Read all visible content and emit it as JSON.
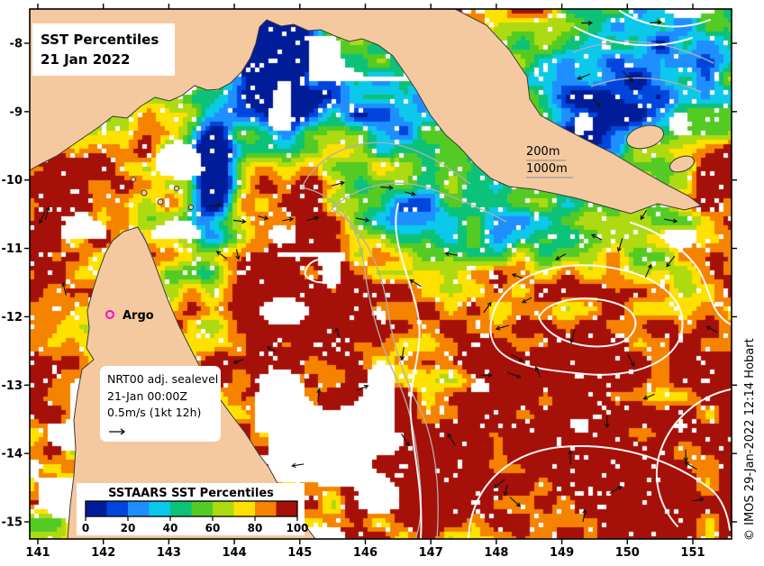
{
  "title": {
    "line1": "SST Percentiles",
    "line2": "21 Jan 2022"
  },
  "axes": {
    "lat_ticks": [
      "-8",
      "-9",
      "-10",
      "-11",
      "-12",
      "-13",
      "-14",
      "-15"
    ],
    "lon_ticks": [
      "141",
      "142",
      "143",
      "144",
      "145",
      "146",
      "147",
      "148",
      "149",
      "150",
      "151"
    ]
  },
  "annotations": {
    "depth200": "200m",
    "depth1000": "1000m",
    "argo": "Argo",
    "nrt_line1": "NRT00 adj. sealevel",
    "nrt_line2": "21-Jan 00:00Z",
    "nrt_line3": "0.5m/s (1kt 12h)"
  },
  "colorbar": {
    "title": "SSTAARS SST Percentiles",
    "title_color": "#8b0000",
    "ticks": [
      "0",
      "20",
      "40",
      "60",
      "80",
      "100"
    ],
    "colors": [
      "#001c99",
      "#0046dd",
      "#1f8fff",
      "#0cc8ea",
      "#0cc278",
      "#53cb24",
      "#aeda12",
      "#ffe100",
      "#f58300",
      "#a51008"
    ]
  },
  "credit": {
    "text": "© IMOS 29-Jan-2022 12:14 Hobart"
  },
  "map": {
    "land_color": "#f5c9a0",
    "no_data_color": "#ffffff",
    "isobath_color": "#b0b0b0",
    "sla_contour_color": "#ffffff",
    "vector_color": "#111111",
    "argo_color": "#ff00cc"
  },
  "chart_data": {
    "type": "heatmap",
    "title": "SST Percentiles",
    "subtitle": "21 Jan 2022",
    "colorbar_title": "SSTAARS SST Percentiles",
    "value_range": [
      0,
      100
    ],
    "value_ticks": [
      0,
      20,
      40,
      60,
      80,
      100
    ],
    "palette": [
      "#001c99",
      "#0046dd",
      "#1f8fff",
      "#0cc8ea",
      "#0cc278",
      "#53cb24",
      "#aeda12",
      "#ffe100",
      "#f58300",
      "#a51008"
    ],
    "x_ticks": [
      141,
      142,
      143,
      144,
      145,
      146,
      147,
      148,
      149,
      150,
      151
    ],
    "y_ticks": [
      -8,
      -9,
      -10,
      -11,
      -12,
      -13,
      -14,
      -15
    ],
    "legend_position": "bottom-left inset",
    "overlay_labels": [
      "200m",
      "1000m",
      "Argo",
      "NRT00 adj. sealevel",
      "21-Jan 00:00Z",
      "0.5m/s (1kt 12h)"
    ]
  }
}
